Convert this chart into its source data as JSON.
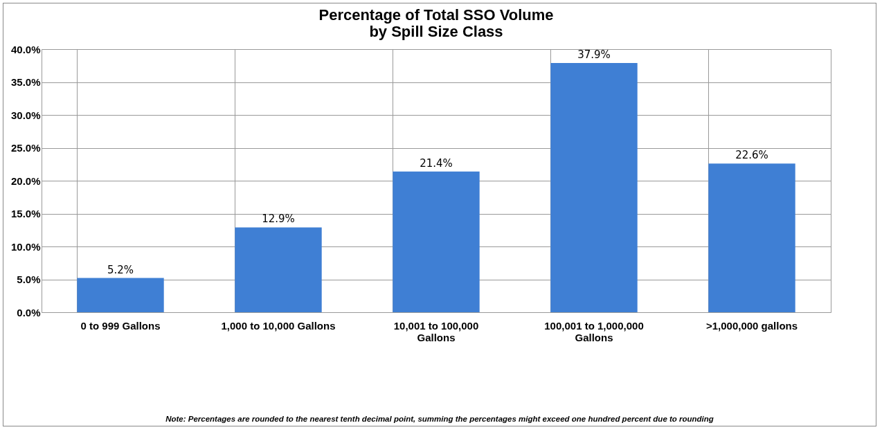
{
  "chart_data": {
    "type": "bar",
    "title": "Percentage of Total SSO Volume\nby Spill Size Class",
    "categories": [
      "0 to 999 Gallons",
      "1,000 to 10,000 Gallons",
      "10,001 to 100,000 Gallons",
      "100,001 to 1,000,000 Gallons",
      ">1,000,000 gallons"
    ],
    "values": [
      5.2,
      12.9,
      21.4,
      37.9,
      22.6
    ],
    "value_labels": [
      "5.2%",
      "12.9%",
      "21.4%",
      "37.9%",
      "22.6%"
    ],
    "color": "#3f7fd4",
    "ylim": [
      0,
      40
    ],
    "yticks": [
      {
        "value": 0,
        "label": "0.0%"
      },
      {
        "value": 5,
        "label": "5.0%"
      },
      {
        "value": 10,
        "label": "10.0%"
      },
      {
        "value": 15,
        "label": "15.0%"
      },
      {
        "value": 20,
        "label": "20.0%"
      },
      {
        "value": 25,
        "label": "25.0%"
      },
      {
        "value": 30,
        "label": "30.0%"
      },
      {
        "value": 35,
        "label": "35.0%"
      },
      {
        "value": 40,
        "label": "40.0%"
      }
    ],
    "grid": true,
    "annotations": [
      "Note: Percentages are rounded to the nearest tenth decimal point, summing the percentages might exceed one hundred percent due to rounding"
    ]
  }
}
